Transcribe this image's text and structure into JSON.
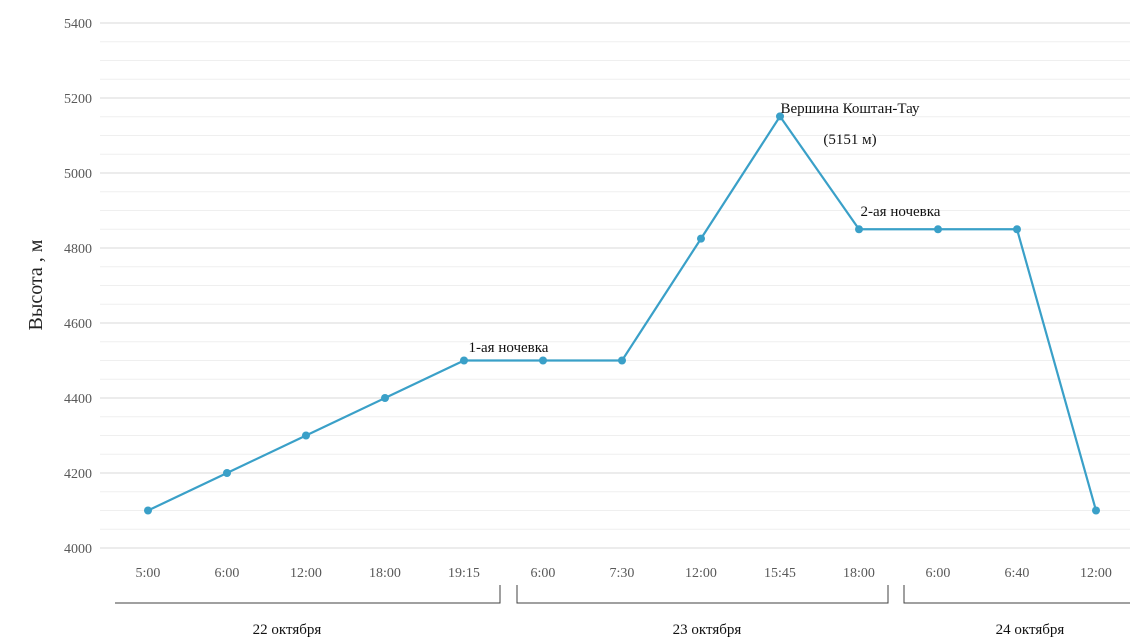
{
  "chart_data": {
    "type": "line",
    "title": "",
    "xlabel": "",
    "ylabel": "Высота , м",
    "ylim": [
      4000,
      5400
    ],
    "yticks": [
      4000,
      4200,
      4400,
      4600,
      4800,
      5000,
      5200,
      5400
    ],
    "grid": true,
    "colors": {
      "line": "#3aa0c8",
      "grid": "#d9d9d9"
    },
    "categories": [
      "5:00",
      "6:00",
      "12:00",
      "18:00",
      "19:15",
      "6:00",
      "7:30",
      "12:00",
      "15:45",
      "18:00",
      "6:00",
      "6:40",
      "12:00"
    ],
    "series": [
      {
        "values": [
          4100,
          4200,
          4300,
          4400,
          4500,
          4500,
          4500,
          4825,
          5151,
          4850,
          4850,
          4850,
          4100
        ]
      }
    ],
    "annotations": [
      {
        "text": "1-ая ночевка",
        "near_index": 5
      },
      {
        "text": "Вершина Коштан-Тау",
        "near_index": 8
      },
      {
        "text": "(5151 м)",
        "near_index": 8
      },
      {
        "text": "2-ая ночевка",
        "near_index": 10
      }
    ],
    "date_groups": [
      {
        "label": "22 октября",
        "from_index": 0,
        "to_index": 4
      },
      {
        "label": "23 октября",
        "from_index": 5,
        "to_index": 9
      },
      {
        "label": "24 октября",
        "from_index": 10,
        "to_index": 12
      }
    ]
  }
}
